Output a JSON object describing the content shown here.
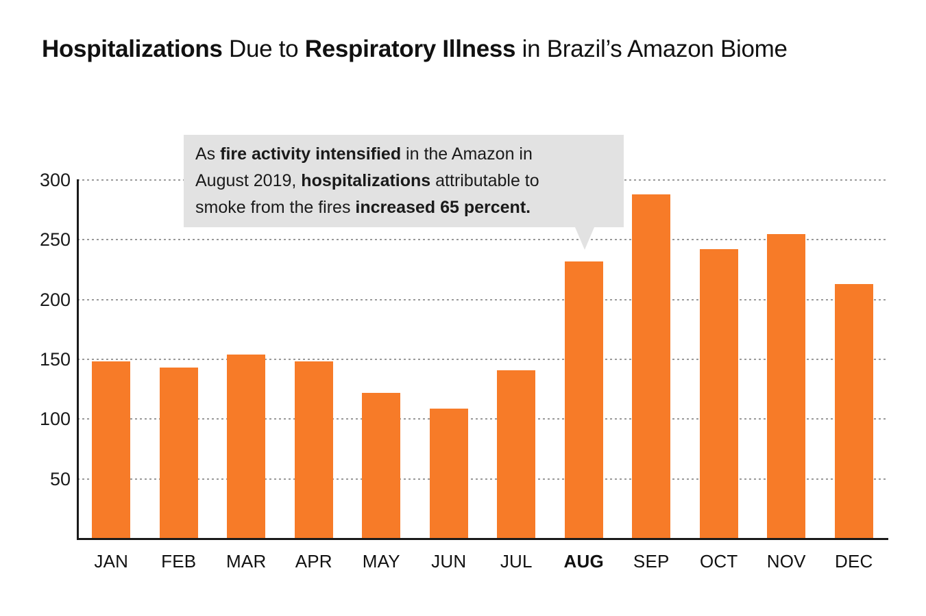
{
  "title": {
    "text": "Hospitalizations Due to Respiratory Illness in Brazil’s Amazon Biome",
    "segments": [
      {
        "t": "Hospitalizations",
        "b": true
      },
      {
        "t": " Due to ",
        "b": false
      },
      {
        "t": "Respiratory Illness",
        "b": true
      },
      {
        "t": " in Brazil’s Amazon Biome",
        "b": false
      }
    ]
  },
  "chart_data": {
    "type": "bar",
    "title": "Hospitalizations Due to Respiratory Illness in Brazil’s Amazon Biome",
    "categories": [
      "JAN",
      "FEB",
      "MAR",
      "APR",
      "MAY",
      "JUN",
      "JUL",
      "AUG",
      "SEP",
      "OCT",
      "NOV",
      "DEC"
    ],
    "values": [
      148,
      143,
      154,
      148,
      122,
      109,
      141,
      232,
      288,
      242,
      255,
      213
    ],
    "xlabel": "",
    "ylabel": "",
    "ylim": [
      0,
      300
    ],
    "yticks": [
      50,
      100,
      150,
      200,
      250,
      300
    ],
    "grid": "horizontal-dashed",
    "legend": "none",
    "bar_color": "#f77b28",
    "axis_color": "#1a1a1a",
    "gridline_color": "#999999",
    "emphasized_category": "AUG",
    "annotation": {
      "text": "As fire activity intensified in the Amazon in August 2019, hospitalizations attributable to smoke from the fires increased 65 percent.",
      "points_to": "AUG",
      "bg_color": "#e2e2e2",
      "lines": [
        [
          {
            "t": "As ",
            "b": false
          },
          {
            "t": "fire activity intensified",
            "b": true
          },
          {
            "t": " in the Amazon in",
            "b": false
          }
        ],
        [
          {
            "t": "August 2019, ",
            "b": false
          },
          {
            "t": "hospitalizations",
            "b": true
          },
          {
            "t": " attributable to",
            "b": false
          }
        ],
        [
          {
            "t": "smoke from the fires ",
            "b": false
          },
          {
            "t": "increased 65 percent.",
            "b": true
          }
        ]
      ]
    }
  }
}
